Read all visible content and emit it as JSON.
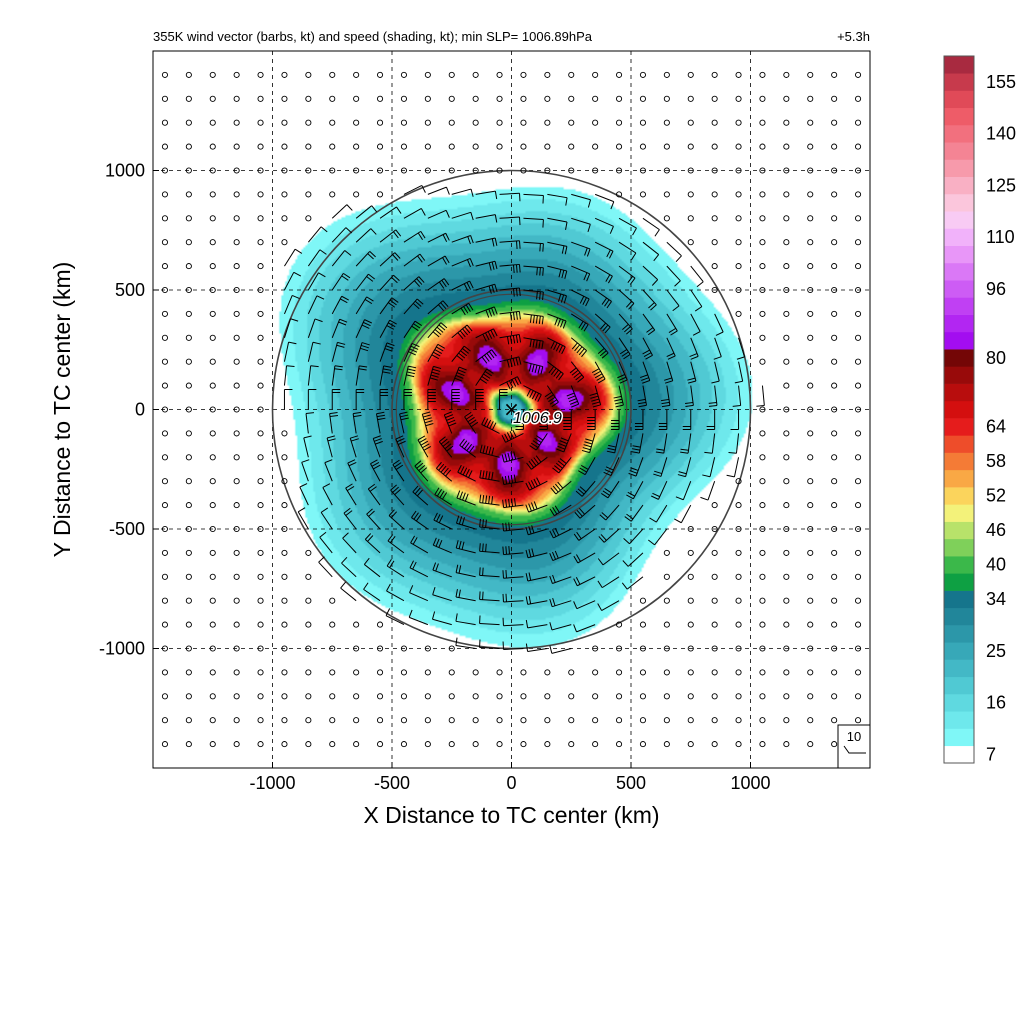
{
  "chart_data": {
    "type": "heatmap",
    "title": "355K wind vector (barbs, kt) and speed (shading, kt); min SLP= 1006.89hPa",
    "time_label": "+5.3h",
    "xlabel": "X Distance to TC center (km)",
    "ylabel": "Y Distance to TC center (km)",
    "xlim": [
      -1500,
      1500
    ],
    "ylim": [
      -1500,
      1500
    ],
    "x_ticks": [
      -1000,
      -500,
      0,
      500,
      1000
    ],
    "y_ticks": [
      -1000,
      -500,
      0,
      500,
      1000
    ],
    "x_tick_labels": [
      "-1000",
      "-500",
      "0",
      "500",
      "1000"
    ],
    "y_tick_labels": [
      "-1000",
      "-500",
      "0",
      "500",
      "1000"
    ],
    "grid": "dashed",
    "range_rings_km": [
      500,
      1000
    ],
    "center_marker": "×",
    "center_label": "1006.9",
    "barb_spacing_km": 100,
    "barb_legend_value": "10",
    "colorbar": {
      "levels": [
        7,
        10,
        13,
        16,
        19,
        22,
        25,
        28,
        31,
        34,
        37,
        40,
        43,
        46,
        49,
        52,
        55,
        58,
        61,
        64,
        68,
        72,
        76,
        80,
        84,
        88,
        92,
        96,
        101,
        105,
        110,
        115,
        120,
        125,
        130,
        135,
        140,
        145,
        150,
        155,
        160
      ],
      "tick_labels": [
        "7",
        "16",
        "25",
        "34",
        "40",
        "46",
        "52",
        "58",
        "64",
        "80",
        "96",
        "110",
        "125",
        "140",
        "155"
      ],
      "colors": [
        "#ffffff",
        "#7ff7f7",
        "#6ee8ec",
        "#5fd9e0",
        "#50c9d3",
        "#43b8c6",
        "#37a8b8",
        "#2c97a9",
        "#21869a",
        "#15758c",
        "#0ea043",
        "#3bb84a",
        "#7fd05a",
        "#b8e26a",
        "#f3f27a",
        "#fbd45c",
        "#f9a845",
        "#f47b36",
        "#ee4d2a",
        "#e51c1c",
        "#d40f0f",
        "#b80d0d",
        "#980a0a",
        "#740606",
        "#a30df0",
        "#b226f2",
        "#c040f3",
        "#cd5cf5",
        "#da78f6",
        "#e896f8",
        "#f1b2fa",
        "#f8cbf4",
        "#fbc6dc",
        "#f9b0c4",
        "#f79aab",
        "#f48494",
        "#f2707e",
        "#ee5c68",
        "#e04a58",
        "#c73a4c",
        "#a82a40"
      ]
    },
    "speed_profile": [
      {
        "r_km": 0,
        "kt": 16
      },
      {
        "r_km": 40,
        "kt": 22
      },
      {
        "r_km": 70,
        "kt": 40
      },
      {
        "r_km": 100,
        "kt": 58
      },
      {
        "r_km": 130,
        "kt": 70
      },
      {
        "r_km": 220,
        "kt": 80
      },
      {
        "r_km": 330,
        "kt": 68
      },
      {
        "r_km": 385,
        "kt": 55
      },
      {
        "r_km": 430,
        "kt": 40
      },
      {
        "r_km": 470,
        "kt": 34
      },
      {
        "r_km": 560,
        "kt": 30
      },
      {
        "r_km": 700,
        "kt": 22
      },
      {
        "r_km": 850,
        "kt": 13
      },
      {
        "r_km": 940,
        "kt": 8
      },
      {
        "r_km": 1000,
        "kt": 5
      }
    ]
  }
}
